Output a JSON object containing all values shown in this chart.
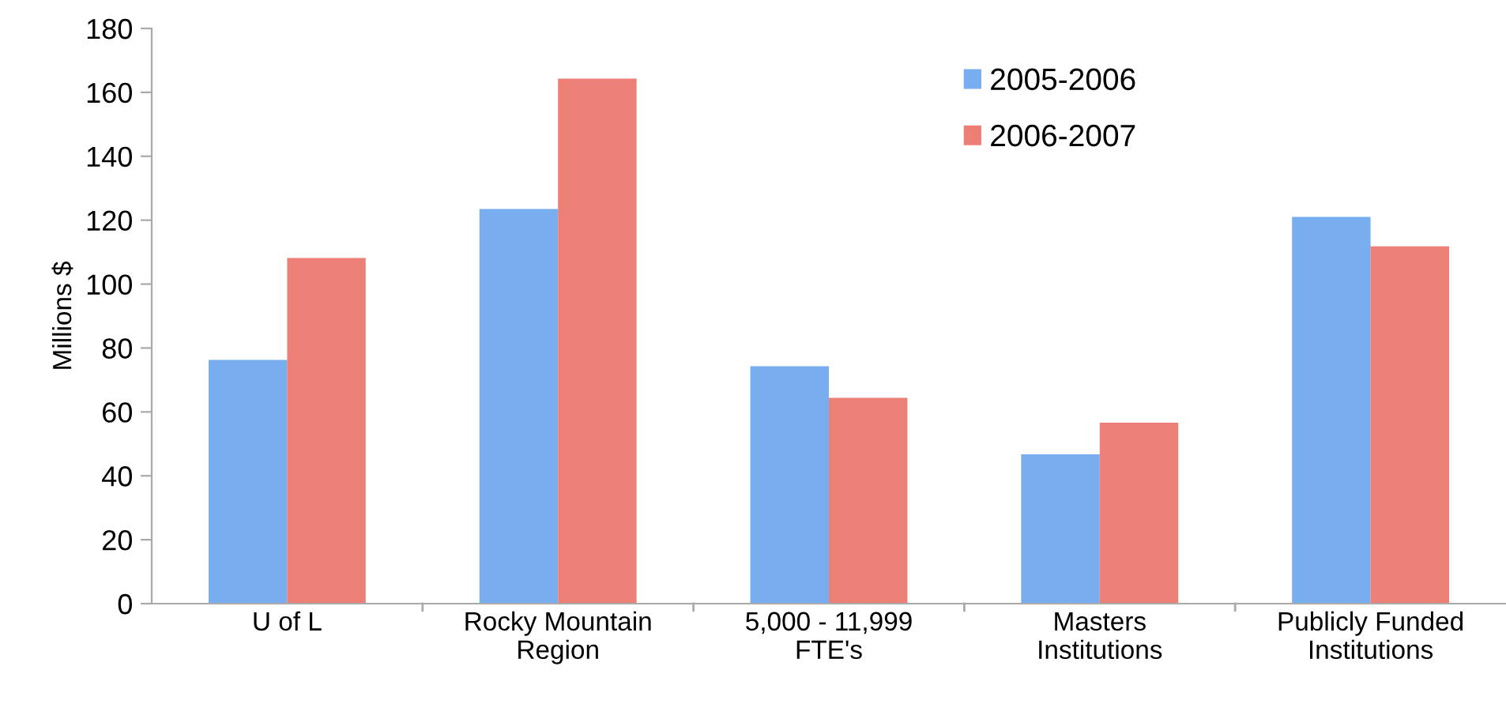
{
  "chart_data": {
    "type": "bar",
    "ylabel": "Millions $",
    "categories": [
      "U of L",
      "Rocky Mountain\nRegion",
      "5,000 - 11,999\nFTE's",
      "Masters\nInstitutions",
      "Publicly Funded\nInstitutions"
    ],
    "series": [
      {
        "name": "2005-2006",
        "color": "#78aef0",
        "values": [
          76.3,
          123.5,
          74.3,
          46.7,
          121
        ]
      },
      {
        "name": "2006-2007",
        "color": "#ec7f76",
        "values": [
          108.2,
          164.3,
          64.4,
          56.6,
          111.8
        ]
      }
    ],
    "ylim": [
      0,
      180
    ],
    "yticks": [
      0,
      20,
      40,
      60,
      80,
      100,
      120,
      140,
      160,
      180
    ],
    "grid": false,
    "legend": "top"
  }
}
